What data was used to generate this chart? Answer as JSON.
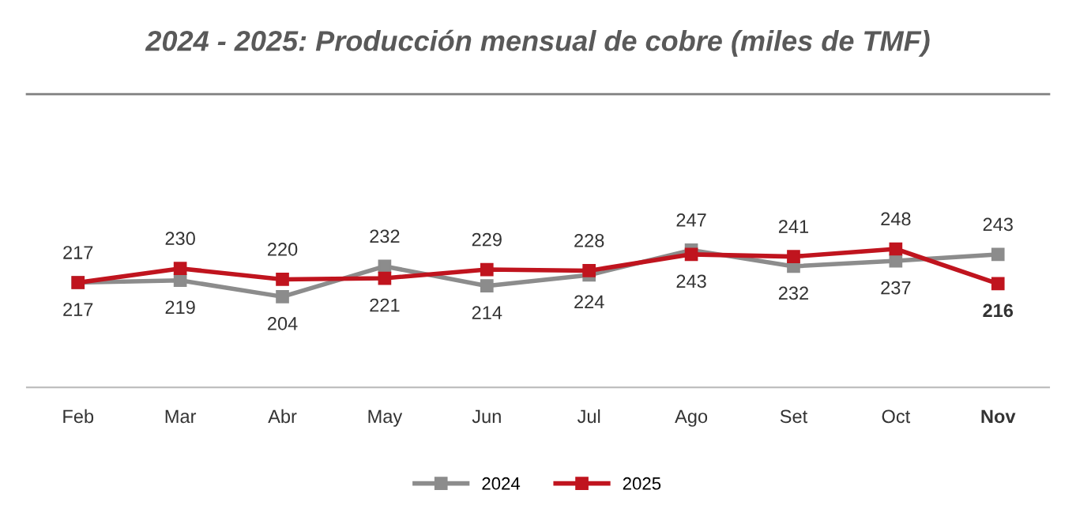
{
  "chart_data": {
    "type": "line",
    "title": "2024 - 2025: Producción mensual de cobre (miles de TMF)",
    "categories": [
      "Feb",
      "Mar",
      "Abr",
      "May",
      "Jun",
      "Jul",
      "Ago",
      "Set",
      "Oct",
      "Nov"
    ],
    "series": [
      {
        "name": "2024",
        "color": "#8c8c8c",
        "values": [
          217,
          219,
          204,
          232,
          214,
          224,
          247,
          232,
          237,
          243
        ]
      },
      {
        "name": "2025",
        "color": "#c0141e",
        "values": [
          217,
          230,
          220,
          221,
          229,
          228,
          243,
          241,
          248,
          216
        ]
      }
    ],
    "data_labels": true,
    "marker": "square",
    "line_style": "solid",
    "grid": false,
    "legend": "bottom",
    "tick_labels": "x"
  }
}
